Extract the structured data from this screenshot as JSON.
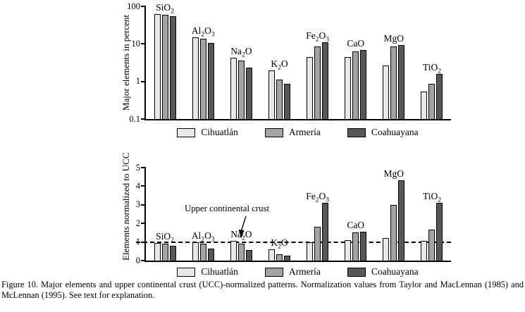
{
  "figure": {
    "caption": "Figure 10. Major elements and upper continental crust (UCC)-normalized patterns. Normalization values from Taylor and MacLennan (1985) and McLennan (1995). See text for explanation."
  },
  "legend": {
    "items": [
      {
        "label": "Cihuatlán",
        "color": "#e8e8e8"
      },
      {
        "label": "Armería",
        "color": "#a3a3a3"
      },
      {
        "label": "Coahuayana",
        "color": "#575757"
      }
    ]
  },
  "chart_data": [
    {
      "type": "bar",
      "title": "",
      "ylabel": "Major elements in percent",
      "xlabel": "",
      "yscale": "log",
      "ylim": [
        0.1,
        100
      ],
      "yticks": [
        100,
        10,
        1,
        0.1
      ],
      "grid": false,
      "legend_position": "bottom",
      "categories": [
        "SiO2",
        "Al2O3",
        "Na2O",
        "K2O",
        "Fe2O3",
        "CaO",
        "MgO",
        "TiO2"
      ],
      "series": [
        {
          "name": "Cihuatlán",
          "values": [
            63,
            15,
            4.2,
            2.0,
            4.5,
            4.5,
            2.7,
            0.55
          ]
        },
        {
          "name": "Armería",
          "values": [
            60,
            13.5,
            3.6,
            1.1,
            8.5,
            6.3,
            8.5,
            0.85
          ]
        },
        {
          "name": "Coahuayana",
          "values": [
            55,
            10.5,
            2.3,
            0.85,
            11,
            7.0,
            9.5,
            1.6
          ]
        }
      ]
    },
    {
      "type": "bar",
      "title": "",
      "ylabel": "Elements normalized to UCC",
      "xlabel": "",
      "yscale": "linear",
      "ylim": [
        0,
        5
      ],
      "yticks": [
        0,
        1,
        2,
        3,
        4,
        5
      ],
      "grid": false,
      "legend_position": "bottom",
      "reference_line": 1,
      "annotation": "Upper continental crust",
      "categories": [
        "SiO2",
        "Al2O3",
        "Na2O",
        "K2O",
        "Fe2O3",
        "CaO",
        "MgO",
        "TiO2"
      ],
      "series": [
        {
          "name": "Cihuatlán",
          "values": [
            0.95,
            1.0,
            1.05,
            0.6,
            1.0,
            1.1,
            1.2,
            1.05
          ]
        },
        {
          "name": "Armería",
          "values": [
            0.9,
            0.9,
            0.9,
            0.35,
            1.8,
            1.5,
            3.0,
            1.65
          ]
        },
        {
          "name": "Coahuayana",
          "values": [
            0.8,
            0.65,
            0.55,
            0.28,
            3.1,
            1.55,
            4.3,
            3.1
          ]
        }
      ]
    }
  ]
}
